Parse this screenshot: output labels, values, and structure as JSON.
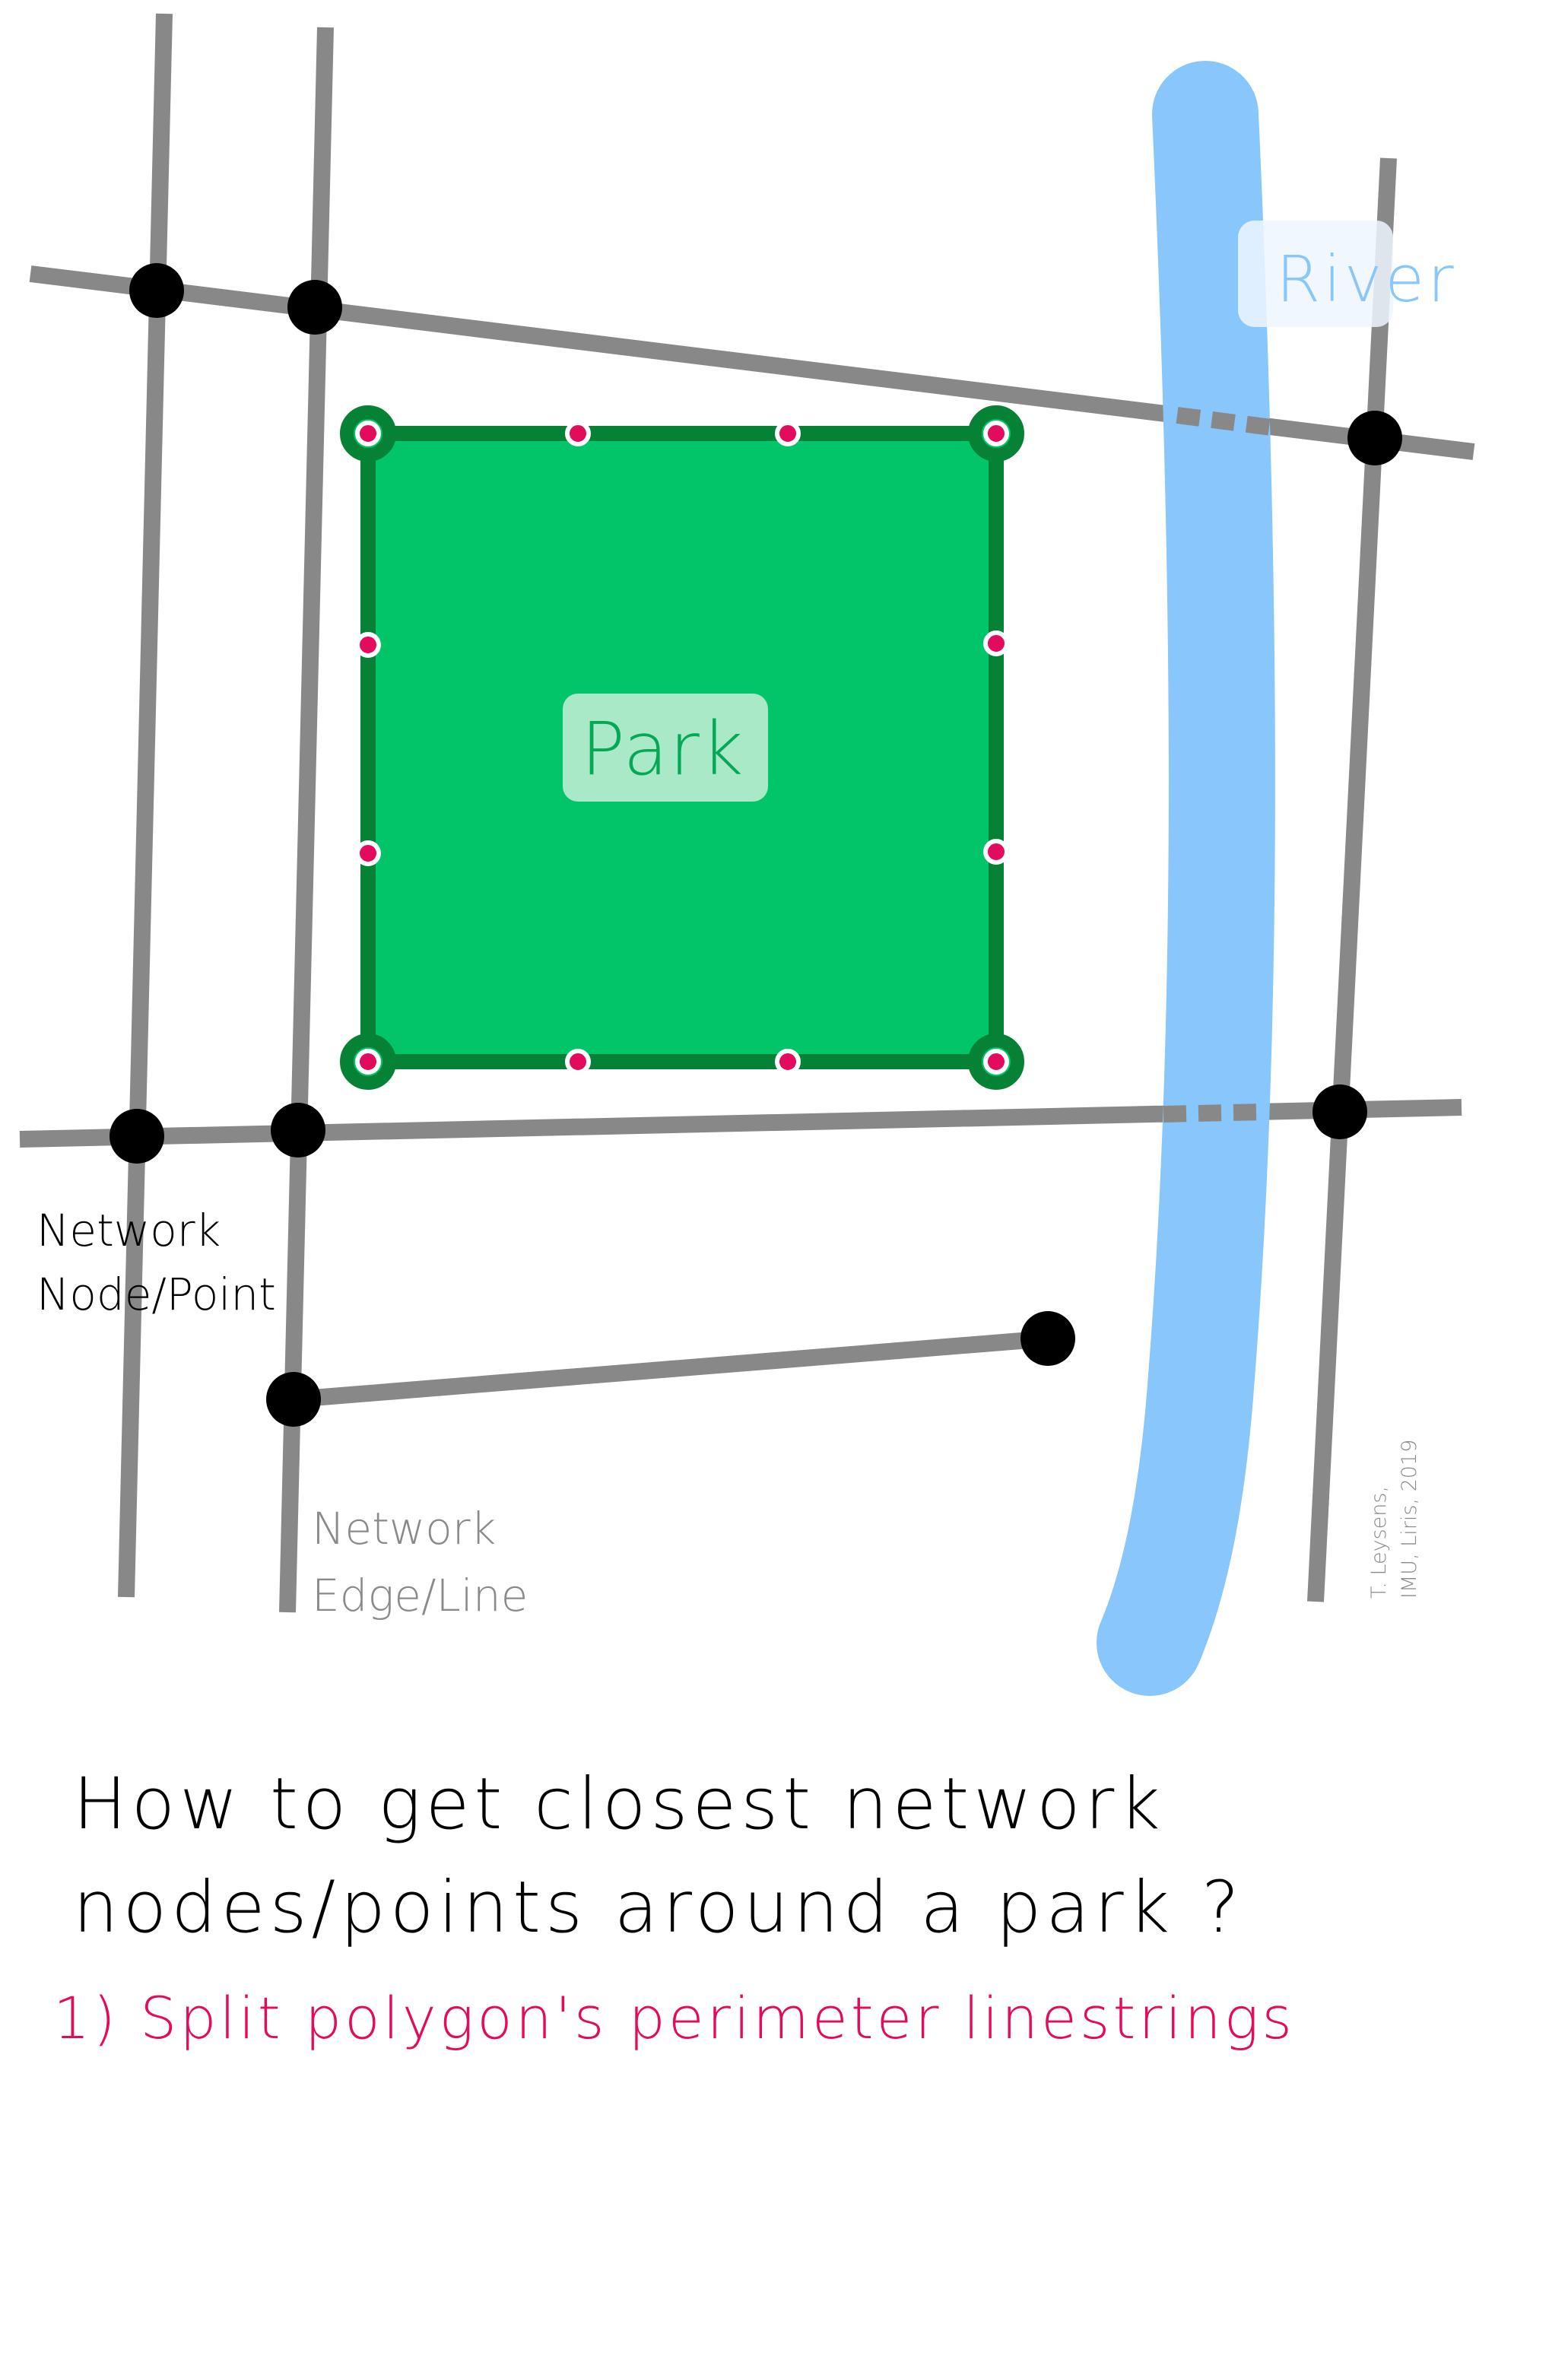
{
  "labels": {
    "river": "River",
    "park": "Park",
    "network_node_line1": "Network",
    "network_node_line2": "Node/Point",
    "network_edge_line1": "Network",
    "network_edge_line2": "Edge/Line",
    "credit_line1": "T. Leysens,",
    "credit_line2": "IMU, Liris, 2019"
  },
  "caption": {
    "question_line1": "How to get closest network",
    "question_line2": "nodes/points around a park ?",
    "step1": "1) Split polygon's perimeter linestrings"
  },
  "colors": {
    "road": "#888888",
    "river": "#88c6fc",
    "park_fill": "#02c469",
    "park_border": "#058235",
    "split_point": "#e30b5c",
    "node": "#000000",
    "label_bg_river": "#eef6ff",
    "label_bg_park": "#a9e9c8",
    "river_text": "#88c6fc",
    "park_text": "#04a857",
    "edge_text": "#8a8a8a",
    "credit_text": "#8a8a8a",
    "title_text": "#000000",
    "step_text": "#e30b5c"
  }
}
